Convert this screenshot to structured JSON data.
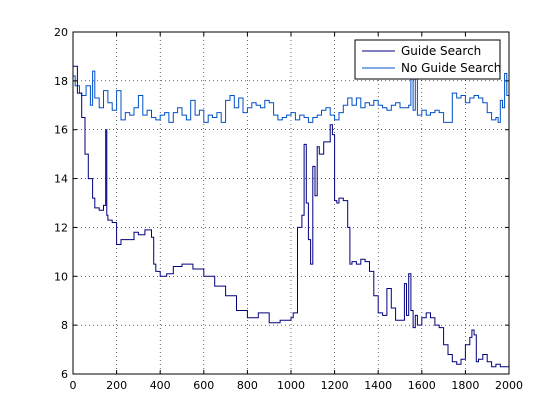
{
  "chart_data": {
    "type": "line",
    "title": "",
    "xlabel": "",
    "ylabel": "",
    "xlim": [
      0,
      2000
    ],
    "ylim": [
      6,
      20
    ],
    "xticks": [
      0,
      200,
      400,
      600,
      800,
      1000,
      1200,
      1400,
      1600,
      1800,
      2000
    ],
    "yticks": [
      6,
      8,
      10,
      12,
      14,
      16,
      18,
      20
    ],
    "grid": true,
    "grid_style": "dotted",
    "legend_position": "top-right",
    "series": [
      {
        "name": "Guide Search",
        "color": "#00007f",
        "x": [
          0,
          20,
          40,
          55,
          70,
          90,
          100,
          120,
          140,
          150,
          155,
          160,
          180,
          200,
          220,
          250,
          280,
          300,
          330,
          360,
          370,
          380,
          400,
          430,
          460,
          500,
          550,
          600,
          650,
          700,
          750,
          800,
          850,
          900,
          950,
          1000,
          1010,
          1030,
          1050,
          1060,
          1070,
          1080,
          1090,
          1100,
          1110,
          1120,
          1130,
          1150,
          1170,
          1180,
          1190,
          1200,
          1210,
          1220,
          1240,
          1260,
          1270,
          1280,
          1300,
          1320,
          1340,
          1360,
          1380,
          1400,
          1420,
          1440,
          1460,
          1480,
          1500,
          1520,
          1530,
          1540,
          1550,
          1560,
          1570,
          1580,
          1600,
          1620,
          1640,
          1660,
          1680,
          1700,
          1720,
          1740,
          1760,
          1780,
          1800,
          1820,
          1830,
          1840,
          1850,
          1860,
          1880,
          1900,
          1920,
          1940,
          1960,
          1980,
          2000
        ],
        "y": [
          18.6,
          17.5,
          16.5,
          15.0,
          14.0,
          13.2,
          12.8,
          12.7,
          12.9,
          16.0,
          12.5,
          12.3,
          12.2,
          11.3,
          11.5,
          11.5,
          11.8,
          11.7,
          11.9,
          11.6,
          10.5,
          10.2,
          10.0,
          10.1,
          10.4,
          10.5,
          10.3,
          10.0,
          9.6,
          9.2,
          8.6,
          8.3,
          8.5,
          8.1,
          8.2,
          8.3,
          8.5,
          12.0,
          12.5,
          15.4,
          13.0,
          11.5,
          10.5,
          14.5,
          13.3,
          15.3,
          15.0,
          15.5,
          15.5,
          16.2,
          15.8,
          13.1,
          13.0,
          13.2,
          13.1,
          12.0,
          10.5,
          10.6,
          10.5,
          10.7,
          10.6,
          10.2,
          9.2,
          8.5,
          8.4,
          9.5,
          8.7,
          8.2,
          8.2,
          9.7,
          8.4,
          10.1,
          8.6,
          7.9,
          8.4,
          8.0,
          8.3,
          8.5,
          8.3,
          8.0,
          7.9,
          7.2,
          6.8,
          6.5,
          6.4,
          6.6,
          7.2,
          7.5,
          7.8,
          7.6,
          6.5,
          6.6,
          6.8,
          6.5,
          6.3,
          6.4,
          6.3,
          6.3,
          6.9
        ]
      },
      {
        "name": "No Guide Search",
        "color": "#0050c8",
        "x": [
          0,
          10,
          30,
          40,
          60,
          80,
          90,
          100,
          120,
          140,
          160,
          180,
          200,
          220,
          240,
          260,
          280,
          300,
          320,
          340,
          360,
          380,
          400,
          420,
          440,
          460,
          480,
          500,
          520,
          540,
          560,
          580,
          600,
          620,
          640,
          660,
          680,
          700,
          720,
          740,
          760,
          780,
          800,
          820,
          840,
          860,
          880,
          900,
          920,
          940,
          960,
          980,
          1000,
          1020,
          1040,
          1060,
          1080,
          1100,
          1120,
          1140,
          1160,
          1180,
          1200,
          1220,
          1240,
          1260,
          1280,
          1300,
          1320,
          1340,
          1360,
          1380,
          1400,
          1420,
          1440,
          1460,
          1480,
          1500,
          1520,
          1540,
          1550,
          1560,
          1570,
          1580,
          1600,
          1620,
          1640,
          1660,
          1680,
          1700,
          1720,
          1740,
          1760,
          1780,
          1800,
          1820,
          1840,
          1860,
          1880,
          1900,
          1920,
          1940,
          1950,
          1960,
          1970,
          1980,
          1990,
          2000
        ],
        "y": [
          18.2,
          17.8,
          17.5,
          17.4,
          17.8,
          17.0,
          18.4,
          17.3,
          16.9,
          17.6,
          17.1,
          16.8,
          17.6,
          16.4,
          16.7,
          16.6,
          16.9,
          17.4,
          16.6,
          16.8,
          16.5,
          16.4,
          16.6,
          16.7,
          16.3,
          16.7,
          16.9,
          16.6,
          16.4,
          17.2,
          16.6,
          16.8,
          16.3,
          16.6,
          16.5,
          16.7,
          16.3,
          17.2,
          17.4,
          16.9,
          17.3,
          16.7,
          16.9,
          17.1,
          17.0,
          16.9,
          17.2,
          17.1,
          16.6,
          16.4,
          16.5,
          16.6,
          16.7,
          16.4,
          16.6,
          16.5,
          16.3,
          16.5,
          16.6,
          16.8,
          16.9,
          16.6,
          16.4,
          16.7,
          17.0,
          17.3,
          17.0,
          17.3,
          16.9,
          17.1,
          17.0,
          17.2,
          17.0,
          16.9,
          16.8,
          17.0,
          17.1,
          16.9,
          16.9,
          17.0,
          18.5,
          16.8,
          18.4,
          16.6,
          16.8,
          16.6,
          16.7,
          16.8,
          16.7,
          16.3,
          16.3,
          17.5,
          17.3,
          17.4,
          17.1,
          17.3,
          17.4,
          17.3,
          17.1,
          16.7,
          16.4,
          16.5,
          16.3,
          17.2,
          16.9,
          18.3,
          17.4,
          16.1
        ]
      }
    ]
  }
}
